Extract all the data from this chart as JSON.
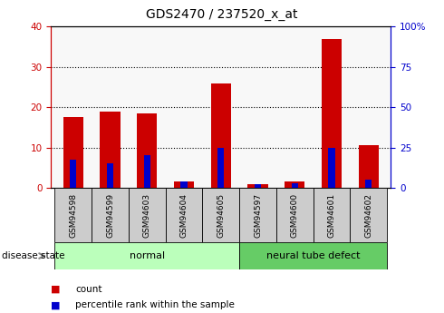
{
  "title": "GDS2470 / 237520_x_at",
  "samples": [
    "GSM94598",
    "GSM94599",
    "GSM94603",
    "GSM94604",
    "GSM94605",
    "GSM94597",
    "GSM94600",
    "GSM94601",
    "GSM94602"
  ],
  "count_values": [
    17.5,
    19.0,
    18.5,
    1.5,
    26.0,
    0.8,
    1.5,
    37.0,
    10.5
  ],
  "percentile_values": [
    17.5,
    15.0,
    20.0,
    4.0,
    25.0,
    2.0,
    3.0,
    25.0,
    5.0
  ],
  "count_color": "#cc0000",
  "percentile_color": "#0000cc",
  "left_ylim": [
    0,
    40
  ],
  "right_ylim": [
    0,
    100
  ],
  "left_yticks": [
    0,
    10,
    20,
    30,
    40
  ],
  "right_yticks": [
    0,
    25,
    50,
    75,
    100
  ],
  "right_yticklabels": [
    "0",
    "25",
    "50",
    "75",
    "100%"
  ],
  "grp_normal_label": "normal",
  "grp_normal_color": "#bbffbb",
  "grp_defect_label": "neural tube defect",
  "grp_defect_color": "#66cc66",
  "group_label": "disease state",
  "legend_count": "count",
  "legend_percentile": "percentile rank within the sample",
  "tick_label_bg": "#cccccc",
  "title_fontsize": 10,
  "tick_fontsize": 7.5
}
